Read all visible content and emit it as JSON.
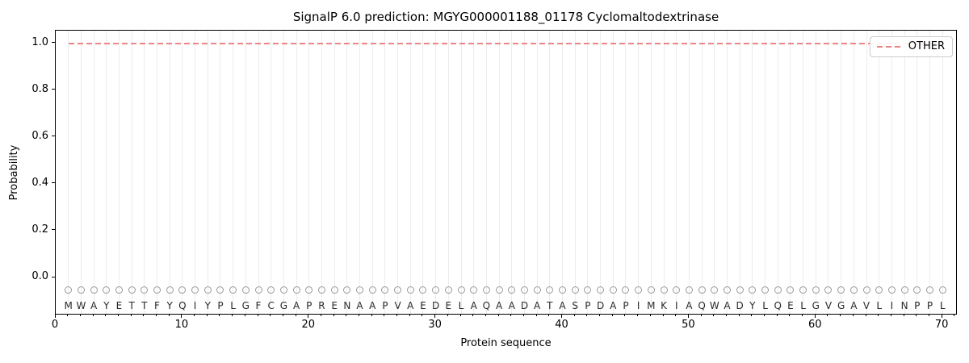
{
  "chart_data": {
    "type": "line",
    "title": "SignalP 6.0 prediction: MGYG000001188_01178 Cyclomaltodextrinase",
    "xlabel": "Protein sequence",
    "ylabel": "Probability",
    "xlim": [
      0,
      71.2
    ],
    "ylim": [
      -0.162,
      1.055
    ],
    "xticks": [
      0,
      10,
      20,
      30,
      40,
      50,
      60,
      70
    ],
    "yticks": [
      {
        "label": "0.0",
        "value": 0.0
      },
      {
        "label": "0.2",
        "value": 0.2
      },
      {
        "label": "0.4",
        "value": 0.4
      },
      {
        "label": "0.6",
        "value": 0.6
      },
      {
        "label": "0.8",
        "value": 0.8
      },
      {
        "label": "1.0",
        "value": 1.0
      }
    ],
    "grid": {
      "vertical_per_residue": true,
      "color": "#ececec"
    },
    "legend": {
      "position": "upper-right",
      "entries": [
        {
          "label": "OTHER",
          "line_style": "dashed",
          "color": "#ee8484"
        }
      ]
    },
    "series": [
      {
        "name": "OTHER",
        "line_style": "dashed",
        "color": "#ee8484",
        "x_start": 1,
        "x_end": 70,
        "y_constant": 1.0
      }
    ],
    "sequence": "MWAYETTFYQIYPLGFCGAPRENAAPVAEDELAQAADATASPDAPIMKIAQWADYLQELGVGAVLINPPL",
    "sequence_markers": {
      "shape": "open-circle",
      "edge_color": "#999999",
      "y_value": -0.055
    },
    "sequence_letters": {
      "color": "#2a2a2a",
      "y_value": -0.121
    },
    "colors": {
      "background": "#ffffff",
      "spine": "#000000",
      "tick": "#000000"
    }
  }
}
